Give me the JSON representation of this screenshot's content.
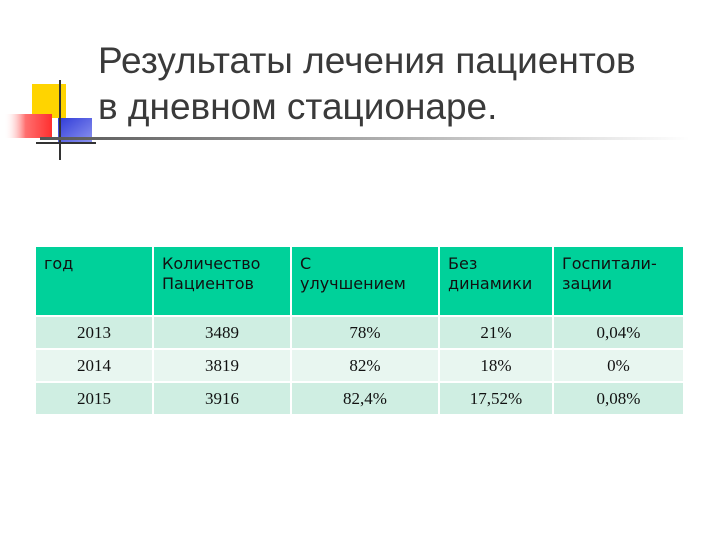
{
  "slide": {
    "title_line1": "Результаты лечения пациентов",
    "title_line2": "в дневном стационаре."
  },
  "table": {
    "headers": [
      {
        "line1": "год",
        "line2": ""
      },
      {
        "line1": "Количество",
        "line2": "Пациентов"
      },
      {
        "line1": "С",
        "line2": "улучшением"
      },
      {
        "line1": "Без",
        "line2": "динамики"
      },
      {
        "line1": "Госпитали-",
        "line2": "зации"
      }
    ],
    "rows": [
      [
        "2013",
        "3489",
        "78%",
        "21%",
        "0,04%"
      ],
      [
        "2014",
        "3819",
        "82%",
        "18%",
        "0%"
      ],
      [
        "2015",
        "3916",
        "82,4%",
        "17,52%",
        "0,08%"
      ]
    ]
  },
  "colors": {
    "header_bg": "#00d19a",
    "row_odd_bg": "#cfeee2",
    "row_even_bg": "#e8f6f0",
    "logo_yellow": "#ffd400",
    "logo_red": "#ff3b3b",
    "logo_blue": "#2f3bd8"
  }
}
